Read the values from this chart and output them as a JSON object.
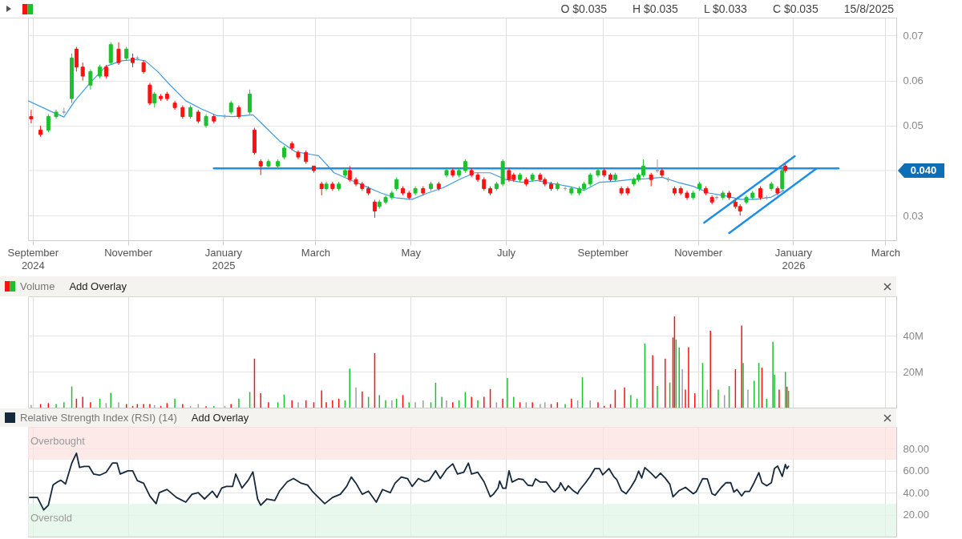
{
  "chart_data": [
    {
      "type": "candlestick",
      "annotations": [
        "O $0.035",
        "H $0.035",
        "L $0.033",
        "C $0.035",
        "15/8/2025"
      ],
      "ref_lines": [
        {
          "axis": "y",
          "value": 0.04,
          "label": "0.040",
          "color": "#e4e4e4"
        }
      ],
      "x": [
        "2024-08-31",
        "2024-09-06",
        "2024-09-11",
        "2024-09-16",
        "2024-09-21",
        "2024-09-26",
        "2024-09-29",
        "2024-10-03",
        "2024-10-08",
        "2024-10-14",
        "2024-10-18",
        "2024-10-21",
        "2024-10-26",
        "2024-10-31",
        "2024-11-04",
        "2024-11-07",
        "2024-11-11",
        "2024-11-15",
        "2024-11-18",
        "2024-11-22",
        "2024-11-26",
        "2024-12-01",
        "2024-12-06",
        "2024-12-11",
        "2024-12-16",
        "2024-12-21",
        "2024-12-26",
        "2025-01-02",
        "2025-01-06",
        "2025-01-11",
        "2025-01-18",
        "2025-01-21",
        "2025-01-25",
        "2025-01-30",
        "2025-02-05",
        "2025-02-09",
        "2025-02-14",
        "2025-02-18",
        "2025-02-23",
        "2025-02-28",
        "2025-03-05",
        "2025-03-08",
        "2025-03-12",
        "2025-03-16",
        "2025-03-20",
        "2025-03-23",
        "2025-03-27",
        "2025-03-31",
        "2025-04-04",
        "2025-04-08",
        "2025-04-11",
        "2025-04-15",
        "2025-04-19",
        "2025-04-22",
        "2025-04-26",
        "2025-04-30",
        "2025-05-04",
        "2025-05-09",
        "2025-05-14",
        "2025-05-19",
        "2025-05-24",
        "2025-05-28",
        "2025-06-01",
        "2025-06-05",
        "2025-06-09",
        "2025-06-13",
        "2025-06-17",
        "2025-06-21",
        "2025-06-25",
        "2025-06-29",
        "2025-07-03",
        "2025-07-06",
        "2025-07-10",
        "2025-07-14",
        "2025-07-18",
        "2025-07-23",
        "2025-07-26",
        "2025-07-30",
        "2025-08-03",
        "2025-08-08",
        "2025-08-12",
        "2025-08-17",
        "2025-08-20",
        "2025-08-24",
        "2025-08-29",
        "2025-09-02",
        "2025-09-06",
        "2025-09-09",
        "2025-09-13",
        "2025-09-17",
        "2025-09-21",
        "2025-09-24",
        "2025-09-27",
        "2025-10-02",
        "2025-10-06",
        "2025-10-09",
        "2025-10-13",
        "2025-10-17",
        "2025-10-21",
        "2025-10-25",
        "2025-10-29",
        "2025-11-02",
        "2025-11-06",
        "2025-11-10",
        "2025-11-13",
        "2025-11-17",
        "2025-11-21",
        "2025-11-25",
        "2025-11-28",
        "2025-12-02",
        "2025-12-06",
        "2025-12-11",
        "2025-12-15",
        "2025-12-18",
        "2025-12-22",
        "2025-12-25",
        "2025-12-27"
      ],
      "ohlc": [
        [
          0.052,
          0.0535,
          0.0505,
          0.0515
        ],
        [
          0.049,
          0.05,
          0.0475,
          0.048
        ],
        [
          0.049,
          0.0525,
          0.0485,
          0.052
        ],
        [
          0.052,
          0.0535,
          0.0515,
          0.053
        ],
        [
          0.053,
          0.054,
          0.0525,
          0.053
        ],
        [
          0.056,
          0.066,
          0.055,
          0.065
        ],
        [
          0.067,
          0.0675,
          0.062,
          0.063
        ],
        [
          0.063,
          0.064,
          0.06,
          0.061
        ],
        [
          0.059,
          0.0625,
          0.058,
          0.062
        ],
        [
          0.061,
          0.0635,
          0.0605,
          0.063
        ],
        [
          0.063,
          0.0635,
          0.0605,
          0.061
        ],
        [
          0.064,
          0.0685,
          0.0635,
          0.068
        ],
        [
          0.067,
          0.0685,
          0.0635,
          0.064
        ],
        [
          0.065,
          0.0675,
          0.0645,
          0.067
        ],
        [
          0.065,
          0.066,
          0.063,
          0.064
        ],
        [
          0.065,
          0.0655,
          0.0645,
          0.065
        ],
        [
          0.064,
          0.0645,
          0.0615,
          0.062
        ],
        [
          0.059,
          0.0595,
          0.0545,
          0.055
        ],
        [
          0.055,
          0.0575,
          0.054,
          0.057
        ],
        [
          0.0565,
          0.057,
          0.0555,
          0.056
        ],
        [
          0.057,
          0.0575,
          0.0555,
          0.056
        ],
        [
          0.055,
          0.0555,
          0.0535,
          0.054
        ],
        [
          0.054,
          0.0545,
          0.0515,
          0.052
        ],
        [
          0.052,
          0.0545,
          0.0515,
          0.054
        ],
        [
          0.053,
          0.0535,
          0.0505,
          0.051
        ],
        [
          0.05,
          0.0525,
          0.0495,
          0.052
        ],
        [
          0.052,
          0.0525,
          0.0505,
          0.051
        ],
        [
          0.052,
          0.0525,
          0.0515,
          0.052
        ],
        [
          0.053,
          0.0555,
          0.0525,
          0.055
        ],
        [
          0.054,
          0.0545,
          0.0515,
          0.052
        ],
        [
          0.053,
          0.058,
          0.0525,
          0.057
        ],
        [
          0.049,
          0.0495,
          0.0435,
          0.044
        ],
        [
          0.042,
          0.0425,
          0.039,
          0.041
        ],
        [
          0.041,
          0.0425,
          0.0405,
          0.042
        ],
        [
          0.041,
          0.0425,
          0.0405,
          0.042
        ],
        [
          0.043,
          0.0455,
          0.0425,
          0.045
        ],
        [
          0.046,
          0.0465,
          0.0445,
          0.045
        ],
        [
          0.044,
          0.0445,
          0.0425,
          0.043
        ],
        [
          0.044,
          0.0445,
          0.0415,
          0.042
        ],
        [
          0.041,
          0.041,
          0.0395,
          0.04
        ],
        [
          0.037,
          0.0375,
          0.0345,
          0.036
        ],
        [
          0.036,
          0.0375,
          0.0355,
          0.037
        ],
        [
          0.037,
          0.0375,
          0.0355,
          0.036
        ],
        [
          0.036,
          0.0375,
          0.0355,
          0.037
        ],
        [
          0.039,
          0.0405,
          0.0385,
          0.04
        ],
        [
          0.04,
          0.041,
          0.0375,
          0.038
        ],
        [
          0.038,
          0.0385,
          0.0365,
          0.037
        ],
        [
          0.037,
          0.0375,
          0.0355,
          0.036
        ],
        [
          0.036,
          0.0365,
          0.0345,
          0.035
        ],
        [
          0.033,
          0.0335,
          0.0295,
          0.031
        ],
        [
          0.032,
          0.0335,
          0.0315,
          0.033
        ],
        [
          0.033,
          0.0345,
          0.0325,
          0.034
        ],
        [
          0.034,
          0.0355,
          0.0335,
          0.035
        ],
        [
          0.036,
          0.0385,
          0.0355,
          0.038
        ],
        [
          0.036,
          0.0365,
          0.0345,
          0.035
        ],
        [
          0.035,
          0.0355,
          0.0335,
          0.034
        ],
        [
          0.035,
          0.0365,
          0.0345,
          0.036
        ],
        [
          0.036,
          0.0365,
          0.0345,
          0.035
        ],
        [
          0.036,
          0.0375,
          0.0355,
          0.037
        ],
        [
          0.037,
          0.0375,
          0.0355,
          0.036
        ],
        [
          0.039,
          0.0405,
          0.0385,
          0.04
        ],
        [
          0.04,
          0.0405,
          0.0385,
          0.039
        ],
        [
          0.039,
          0.0405,
          0.0385,
          0.04
        ],
        [
          0.04,
          0.0425,
          0.0395,
          0.042
        ],
        [
          0.04,
          0.0405,
          0.0385,
          0.039
        ],
        [
          0.039,
          0.0395,
          0.0375,
          0.038
        ],
        [
          0.038,
          0.0385,
          0.0355,
          0.036
        ],
        [
          0.036,
          0.0365,
          0.0345,
          0.035
        ],
        [
          0.036,
          0.0375,
          0.0355,
          0.037
        ],
        [
          0.037,
          0.0425,
          0.0365,
          0.042
        ],
        [
          0.04,
          0.0405,
          0.0375,
          0.038
        ],
        [
          0.039,
          0.0395,
          0.0375,
          0.038
        ],
        [
          0.038,
          0.0395,
          0.0375,
          0.039
        ],
        [
          0.038,
          0.0385,
          0.0365,
          0.037
        ],
        [
          0.038,
          0.0395,
          0.0375,
          0.039
        ],
        [
          0.039,
          0.0395,
          0.0375,
          0.038
        ],
        [
          0.038,
          0.0385,
          0.0365,
          0.037
        ],
        [
          0.037,
          0.0375,
          0.0355,
          0.036
        ],
        [
          0.036,
          0.0375,
          0.0355,
          0.037
        ],
        [
          0.036,
          0.0365,
          0.0355,
          0.036
        ],
        [
          0.035,
          0.0365,
          0.0345,
          0.036
        ],
        [
          0.035,
          0.0365,
          0.0345,
          0.036
        ],
        [
          0.036,
          0.0375,
          0.0355,
          0.037
        ],
        [
          0.037,
          0.0395,
          0.0365,
          0.039
        ],
        [
          0.039,
          0.0405,
          0.0385,
          0.04
        ],
        [
          0.04,
          0.0405,
          0.0385,
          0.039
        ],
        [
          0.039,
          0.0395,
          0.0375,
          0.038
        ],
        [
          0.038,
          0.0395,
          0.0375,
          0.039
        ],
        [
          0.036,
          0.0365,
          0.0345,
          0.035
        ],
        [
          0.036,
          0.0365,
          0.0345,
          0.035
        ],
        [
          0.037,
          0.0385,
          0.0365,
          0.038
        ],
        [
          0.038,
          0.0395,
          0.0375,
          0.039
        ],
        [
          0.039,
          0.0425,
          0.0385,
          0.041
        ],
        [
          0.039,
          0.0395,
          0.0365,
          0.038
        ],
        [
          0.04,
          0.0425,
          0.0395,
          0.04
        ],
        [
          0.04,
          0.0405,
          0.0385,
          0.039
        ],
        [
          0.038,
          0.0385,
          0.0375,
          0.038
        ],
        [
          0.036,
          0.0365,
          0.0345,
          0.035
        ],
        [
          0.036,
          0.0365,
          0.0345,
          0.035
        ],
        [
          0.035,
          0.0355,
          0.0335,
          0.034
        ],
        [
          0.034,
          0.0355,
          0.0335,
          0.035
        ],
        [
          0.036,
          0.0375,
          0.0355,
          0.037
        ],
        [
          0.036,
          0.0365,
          0.0345,
          0.035
        ],
        [
          0.034,
          0.0345,
          0.0325,
          0.033
        ],
        [
          0.034,
          0.0345,
          0.0335,
          0.034
        ],
        [
          0.034,
          0.0355,
          0.0335,
          0.035
        ],
        [
          0.035,
          0.0355,
          0.0335,
          0.034
        ],
        [
          0.033,
          0.0335,
          0.0315,
          0.032
        ],
        [
          0.032,
          0.0325,
          0.03,
          0.031
        ],
        [
          0.033,
          0.0345,
          0.0325,
          0.034
        ],
        [
          0.034,
          0.0355,
          0.0335,
          0.035
        ],
        [
          0.036,
          0.0365,
          0.0335,
          0.034
        ],
        [
          0.034,
          0.0345,
          0.0335,
          0.034
        ],
        [
          0.036,
          0.0375,
          0.0355,
          0.037
        ],
        [
          0.036,
          0.0365,
          0.0345,
          0.035
        ],
        [
          0.036,
          0.0405,
          0.0355,
          0.04
        ],
        [
          0.041,
          0.0415,
          0.0395,
          0.04
        ]
      ],
      "colors": [
        "#ff1010",
        "#ff1010",
        "#1cc02e",
        "#1cc02e",
        "#9e9e9e",
        "#1cc02e",
        "#ff1010",
        "#ff1010",
        "#1cc02e",
        "#1cc02e",
        "#ff1010",
        "#1cc02e",
        "#ff1010",
        "#1cc02e",
        "#ff1010",
        "#9e9e9e",
        "#ff1010",
        "#ff1010",
        "#1cc02e",
        "#ff1010",
        "#ff1010",
        "#ff1010",
        "#ff1010",
        "#1cc02e",
        "#ff1010",
        "#1cc02e",
        "#ff1010",
        "#9e9e9e",
        "#1cc02e",
        "#ff1010",
        "#1cc02e",
        "#ff1010",
        "#ff1010",
        "#1cc02e",
        "#1cc02e",
        "#1cc02e",
        "#ff1010",
        "#ff1010",
        "#ff1010",
        "#ff1010",
        "#ff1010",
        "#1cc02e",
        "#ff1010",
        "#1cc02e",
        "#1cc02e",
        "#ff1010",
        "#ff1010",
        "#ff1010",
        "#ff1010",
        "#ff1010",
        "#1cc02e",
        "#1cc02e",
        "#1cc02e",
        "#1cc02e",
        "#ff1010",
        "#ff1010",
        "#1cc02e",
        "#ff1010",
        "#1cc02e",
        "#ff1010",
        "#1cc02e",
        "#ff1010",
        "#1cc02e",
        "#1cc02e",
        "#ff1010",
        "#ff1010",
        "#ff1010",
        "#ff1010",
        "#1cc02e",
        "#1cc02e",
        "#ff1010",
        "#ff1010",
        "#1cc02e",
        "#ff1010",
        "#1cc02e",
        "#ff1010",
        "#ff1010",
        "#ff1010",
        "#1cc02e",
        "#9e9e9e",
        "#1cc02e",
        "#1cc02e",
        "#1cc02e",
        "#1cc02e",
        "#1cc02e",
        "#ff1010",
        "#ff1010",
        "#1cc02e",
        "#ff1010",
        "#ff1010",
        "#1cc02e",
        "#1cc02e",
        "#1cc02e",
        "#ff1010",
        "#9e9e9e",
        "#ff1010",
        "#9e9e9e",
        "#ff1010",
        "#ff1010",
        "#ff1010",
        "#1cc02e",
        "#1cc02e",
        "#ff1010",
        "#ff1010",
        "#9e9e9e",
        "#1cc02e",
        "#ff1010",
        "#ff1010",
        "#ff1010",
        "#1cc02e",
        "#1cc02e",
        "#ff1010",
        "#9e9e9e",
        "#1cc02e",
        "#ff1010",
        "#1cc02e",
        "#ff1010"
      ],
      "series": [
        {
          "type": "line",
          "color": "#3f9be3",
          "x": [
            "2024-08-29",
            "2024-09-13",
            "2024-09-21",
            "2024-09-28",
            "2024-10-08",
            "2024-10-18",
            "2024-10-28",
            "2024-11-07",
            "2024-11-12",
            "2024-11-20",
            "2024-11-28",
            "2024-12-08",
            "2024-12-18",
            "2024-12-28",
            "2025-01-07",
            "2025-01-20",
            "2025-01-27",
            "2025-02-06",
            "2025-02-16",
            "2025-02-26",
            "2025-03-03",
            "2025-03-13",
            "2025-03-23",
            "2025-04-02",
            "2025-04-12",
            "2025-04-22",
            "2025-05-02",
            "2025-05-12",
            "2025-05-22",
            "2025-06-01",
            "2025-06-11",
            "2025-06-21",
            "2025-07-01",
            "2025-07-11",
            "2025-07-21",
            "2025-07-31",
            "2025-08-10",
            "2025-08-20",
            "2025-08-30",
            "2025-09-09",
            "2025-09-19",
            "2025-09-29",
            "2025-10-09",
            "2025-10-19",
            "2025-10-29",
            "2025-11-08",
            "2025-11-18",
            "2025-11-28",
            "2025-12-08",
            "2025-12-18",
            "2025-12-26"
          ],
          "values": [
            0.0555,
            0.0531,
            0.0519,
            0.0555,
            0.0596,
            0.0632,
            0.0644,
            0.0647,
            0.0644,
            0.062,
            0.059,
            0.0555,
            0.0537,
            0.0522,
            0.052,
            0.0524,
            0.05,
            0.0466,
            0.0442,
            0.0436,
            0.0433,
            0.0395,
            0.038,
            0.0365,
            0.035,
            0.0339,
            0.0336,
            0.035,
            0.0362,
            0.038,
            0.0395,
            0.0395,
            0.038,
            0.0374,
            0.0378,
            0.0371,
            0.0365,
            0.0356,
            0.0374,
            0.0376,
            0.038,
            0.0382,
            0.0385,
            0.0374,
            0.0365,
            0.035,
            0.0344,
            0.0336,
            0.0336,
            0.0341,
            0.0356
          ]
        },
        {
          "type": "line",
          "color": "#1e8fe6",
          "x": [
            "2024-12-26",
            "2026-01-30"
          ],
          "values": [
            0.0405,
            0.0405
          ]
        },
        {
          "type": "line",
          "color": "#1e8fe6",
          "x": [
            "2025-11-05",
            "2026-01-02"
          ],
          "values": [
            0.0284,
            0.0432
          ]
        },
        {
          "type": "line",
          "color": "#1e8fe6",
          "x": [
            "2025-11-21",
            "2026-01-16"
          ],
          "values": [
            0.0261,
            0.0405
          ]
        }
      ],
      "xlim": [
        "2024-08-29",
        "2026-03-08"
      ],
      "xticks": [
        {
          "value": "2024-09-01",
          "label": "September 2024"
        },
        {
          "value": "2024-11-01",
          "label": "November"
        },
        {
          "value": "2025-01-01",
          "label": "January 2025"
        },
        {
          "value": "2025-03-01",
          "label": "March"
        },
        {
          "value": "2025-05-01",
          "label": "May"
        },
        {
          "value": "2025-07-01",
          "label": "July"
        },
        {
          "value": "2025-09-01",
          "label": "September"
        },
        {
          "value": "2025-11-01",
          "label": "November"
        },
        {
          "value": "2026-01-01",
          "label": "January 2026"
        },
        {
          "value": "2026-03-01",
          "label": "March"
        }
      ],
      "ylim": [
        0.0245,
        0.074
      ],
      "yticks": [
        0.03,
        0.05,
        0.06,
        0.07
      ],
      "grid": true
    },
    {
      "type": "bar",
      "title": "Volume",
      "annotations": [
        "Add Overlay"
      ],
      "x": [
        "2024-08-31",
        "2024-09-06",
        "2024-09-11",
        "2024-09-16",
        "2024-09-21",
        "2024-09-26",
        "2024-09-29",
        "2024-10-03",
        "2024-10-08",
        "2024-10-14",
        "2024-10-18",
        "2024-10-21",
        "2024-10-26",
        "2024-10-31",
        "2024-11-04",
        "2024-11-07",
        "2024-11-11",
        "2024-11-15",
        "2024-11-18",
        "2024-11-22",
        "2024-11-26",
        "2024-12-01",
        "2024-12-06",
        "2024-12-11",
        "2024-12-16",
        "2024-12-21",
        "2024-12-26",
        "2025-01-02",
        "2025-01-06",
        "2025-01-11",
        "2025-01-18",
        "2025-01-21",
        "2025-01-25",
        "2025-01-30",
        "2025-02-05",
        "2025-02-09",
        "2025-02-14",
        "2025-02-18",
        "2025-02-23",
        "2025-02-28",
        "2025-03-05",
        "2025-03-08",
        "2025-03-12",
        "2025-03-16",
        "2025-03-20",
        "2025-03-23",
        "2025-03-27",
        "2025-03-31",
        "2025-04-04",
        "2025-04-08",
        "2025-04-11",
        "2025-04-15",
        "2025-04-19",
        "2025-04-22",
        "2025-04-26",
        "2025-04-30",
        "2025-05-04",
        "2025-05-09",
        "2025-05-14",
        "2025-05-17",
        "2025-05-21",
        "2025-05-24",
        "2025-05-28",
        "2025-06-01",
        "2025-06-05",
        "2025-06-09",
        "2025-06-13",
        "2025-06-17",
        "2025-06-21",
        "2025-06-25",
        "2025-06-29",
        "2025-07-02",
        "2025-07-06",
        "2025-07-10",
        "2025-07-14",
        "2025-07-18",
        "2025-07-23",
        "2025-07-26",
        "2025-07-30",
        "2025-08-03",
        "2025-08-08",
        "2025-08-12",
        "2025-08-16",
        "2025-08-19",
        "2025-08-24",
        "2025-08-29",
        "2025-09-02",
        "2025-09-06",
        "2025-09-09",
        "2025-09-15",
        "2025-09-19",
        "2025-09-23",
        "2025-09-28",
        "2025-10-03",
        "2025-10-06",
        "2025-10-11",
        "2025-10-14",
        "2025-10-16",
        "2025-10-17",
        "2025-10-18",
        "2025-10-20",
        "2025-10-22",
        "2025-10-24",
        "2025-10-26",
        "2025-10-30",
        "2025-11-04",
        "2025-11-07",
        "2025-11-09",
        "2025-11-14",
        "2025-11-18",
        "2025-11-21",
        "2025-11-25",
        "2025-11-29",
        "2025-11-30",
        "2025-12-03",
        "2025-12-07",
        "2025-12-10",
        "2025-12-12",
        "2025-12-15",
        "2025-12-19",
        "2025-12-20",
        "2025-12-23",
        "2025-12-27",
        "2025-12-28",
        "2025-12-29"
      ],
      "values": [
        1.5,
        2,
        2.5,
        2,
        3,
        11.8,
        5,
        6,
        3,
        5,
        2.5,
        8.3,
        3,
        2,
        1,
        2,
        2,
        2,
        1.5,
        1,
        2.5,
        5,
        2,
        1,
        2,
        0.8,
        1,
        1,
        2,
        5,
        8.7,
        27.3,
        8,
        3,
        3,
        7.3,
        4,
        3,
        4,
        3,
        9.6,
        3,
        4,
        5,
        4,
        21.7,
        11.3,
        9,
        6,
        30.4,
        7,
        4,
        4,
        5,
        7,
        3,
        3,
        4,
        3,
        13.9,
        6,
        4,
        3,
        4,
        8.7,
        6,
        4,
        6,
        10.4,
        3,
        5,
        16.5,
        6,
        3,
        3,
        3,
        2,
        3,
        2,
        3,
        2,
        5,
        4,
        16.9,
        4,
        3,
        1,
        2,
        10,
        11.3,
        7,
        5,
        35.7,
        29.2,
        12,
        27.3,
        14,
        39.1,
        50.8,
        37.9,
        33.4,
        21.4,
        10,
        33.7,
        8,
        24.9,
        10,
        42.8,
        10,
        7,
        12,
        21.4,
        45.7,
        24.9,
        10,
        15,
        24.9,
        22.3,
        5,
        36.7,
        18.3,
        10,
        20,
        11.7,
        9.4
      ],
      "colors": [
        "#9e9e9e",
        "#ff1010",
        "#ff1010",
        "#1cc02e",
        "#1cc02e",
        "#1cc02e",
        "#ff1010",
        "#ff1010",
        "#ff1010",
        "#1cc02e",
        "#9e9e9e",
        "#1cc02e",
        "#9e9e9e",
        "#ff1010",
        "#ff1010",
        "#ff1010",
        "#ff1010",
        "#ff1010",
        "#9e9e9e",
        "#ff1010",
        "#ff1010",
        "#1cc02e",
        "#ff1010",
        "#9e9e9e",
        "#9e9e9e",
        "#ff1010",
        "#1cc02e",
        "#9e9e9e",
        "#ff1010",
        "#1cc02e",
        "#1cc02e",
        "#ff1010",
        "#ff1010",
        "#ff1010",
        "#1cc02e",
        "#1cc02e",
        "#ff1010",
        "#9e9e9e",
        "#ff1010",
        "#ff1010",
        "#ff1010",
        "#ff1010",
        "#ff1010",
        "#ff1010",
        "#1cc02e",
        "#1cc02e",
        "#9e9e9e",
        "#ff1010",
        "#1cc02e",
        "#ff1010",
        "#1cc02e",
        "#1cc02e",
        "#9e9e9e",
        "#1cc02e",
        "#ff1010",
        "#1cc02e",
        "#9e9e9e",
        "#9e9e9e",
        "#1cc02e",
        "#1cc02e",
        "#1cc02e",
        "#9e9e9e",
        "#ff1010",
        "#1cc02e",
        "#1cc02e",
        "#ff1010",
        "#1cc02e",
        "#ff1010",
        "#ff1010",
        "#9e9e9e",
        "#ff1010",
        "#1cc02e",
        "#1cc02e",
        "#ff1010",
        "#9e9e9e",
        "#ff1010",
        "#9e9e9e",
        "#9e9e9e",
        "#ff1010",
        "#ff1010",
        "#1cc02e",
        "#ff1010",
        "#9e9e9e",
        "#1cc02e",
        "#9e9e9e",
        "#ff1010",
        "#ff1010",
        "#ff1010",
        "#ff1010",
        "#ff1010",
        "#1cc02e",
        "#1cc02e",
        "#1cc02e",
        "#ff1010",
        "#1cc02e",
        "#ff1010",
        "#1cc02e",
        "#ff1010",
        "#ff1010",
        "#1cc02e",
        "#1cc02e",
        "#9e9e9e",
        "#ff1010",
        "#ff1010",
        "#ff1010",
        "#1cc02e",
        "#9e9e9e",
        "#ff1010",
        "#1cc02e",
        "#9e9e9e",
        "#1cc02e",
        "#ff1010",
        "#ff1010",
        "#1cc02e",
        "#9e9e9e",
        "#1cc02e",
        "#1cc02e",
        "#ff1010",
        "#1cc02e",
        "#1cc02e",
        "#1cc02e",
        "#ff1010",
        "#1cc02e",
        "#ff1010",
        "#1cc02e"
      ],
      "xlim": [
        "2024-08-29",
        "2026-03-08"
      ],
      "xticks": [
        {
          "value": "2024-09-01",
          "label": null
        },
        {
          "value": "2024-11-01",
          "label": null
        },
        {
          "value": "2025-01-01",
          "label": null
        },
        {
          "value": "2025-03-01",
          "label": null
        },
        {
          "value": "2025-05-01",
          "label": null
        },
        {
          "value": "2025-07-01",
          "label": null
        },
        {
          "value": "2025-09-01",
          "label": null
        },
        {
          "value": "2025-11-01",
          "label": null
        },
        {
          "value": "2026-01-01",
          "label": null
        },
        {
          "value": "2026-03-01",
          "label": null
        }
      ],
      "ylim": [
        0,
        62
      ],
      "yticks": [
        {
          "value": 20,
          "label": "20M"
        },
        {
          "value": 40,
          "label": "40M"
        }
      ],
      "grid": true,
      "tick_labels": "y"
    },
    {
      "type": "line",
      "title": "Relative Strength Index (RSI) (14)",
      "annotations": [
        "Add Overlay"
      ],
      "color": "#15283c",
      "x": [
        "2024-08-30",
        "2024-09-04",
        "2024-09-08",
        "2024-09-11",
        "2024-09-14",
        "2024-09-17",
        "2024-09-19",
        "2024-09-22",
        "2024-09-26",
        "2024-09-29",
        "2024-10-01",
        "2024-10-04",
        "2024-10-07",
        "2024-10-10",
        "2024-10-14",
        "2024-10-18",
        "2024-10-22",
        "2024-10-25",
        "2024-10-27",
        "2024-11-01",
        "2024-11-04",
        "2024-11-07",
        "2024-11-11",
        "2024-11-15",
        "2024-11-19",
        "2024-11-21",
        "2024-11-26",
        "2024-12-02",
        "2024-12-08",
        "2024-12-12",
        "2024-12-16",
        "2024-12-20",
        "2024-12-25",
        "2024-12-28",
        "2024-12-31",
        "2025-01-03",
        "2025-01-07",
        "2025-01-09",
        "2025-01-13",
        "2025-01-17",
        "2025-01-20",
        "2025-01-23",
        "2025-01-25",
        "2025-01-29",
        "2025-02-03",
        "2025-02-06",
        "2025-02-11",
        "2025-02-15",
        "2025-02-20",
        "2025-02-24",
        "2025-02-27",
        "2025-03-03",
        "2025-03-07",
        "2025-03-12",
        "2025-03-17",
        "2025-03-21",
        "2025-03-24",
        "2025-03-27",
        "2025-03-31",
        "2025-04-04",
        "2025-04-09",
        "2025-04-13",
        "2025-04-18",
        "2025-04-21",
        "2025-04-25",
        "2025-04-29",
        "2025-05-02",
        "2025-05-06",
        "2025-05-10",
        "2025-05-13",
        "2025-05-17",
        "2025-05-20",
        "2025-05-24",
        "2025-05-28",
        "2025-05-31",
        "2025-06-04",
        "2025-06-07",
        "2025-06-09",
        "2025-06-13",
        "2025-06-17",
        "2025-06-21",
        "2025-06-23",
        "2025-06-26",
        "2025-06-27",
        "2025-06-29",
        "2025-07-01",
        "2025-07-03",
        "2025-07-05",
        "2025-07-09",
        "2025-07-12",
        "2025-07-15",
        "2025-07-18",
        "2025-07-20",
        "2025-07-23",
        "2025-07-27",
        "2025-07-30",
        "2025-08-01",
        "2025-08-04",
        "2025-08-05",
        "2025-08-08",
        "2025-08-10",
        "2025-08-13",
        "2025-08-16",
        "2025-08-17",
        "2025-08-21",
        "2025-08-24",
        "2025-08-27",
        "2025-08-30",
        "2025-09-01",
        "2025-09-03",
        "2025-09-05",
        "2025-09-08",
        "2025-09-10",
        "2025-09-13",
        "2025-09-16",
        "2025-09-19",
        "2025-09-22",
        "2025-09-24",
        "2025-09-26",
        "2025-09-28",
        "2025-10-02",
        "2025-10-05",
        "2025-10-08",
        "2025-10-11",
        "2025-10-14",
        "2025-10-16",
        "2025-10-20",
        "2025-10-24",
        "2025-10-29",
        "2025-10-31",
        "2025-11-04",
        "2025-11-07",
        "2025-11-10",
        "2025-11-12",
        "2025-11-16",
        "2025-11-19",
        "2025-11-22",
        "2025-11-24",
        "2025-11-26",
        "2025-11-29",
        "2025-12-01",
        "2025-12-04",
        "2025-12-07",
        "2025-12-10",
        "2025-12-12",
        "2025-12-15",
        "2025-12-18",
        "2025-12-20",
        "2025-12-22",
        "2025-12-25",
        "2025-12-27",
        "2025-12-28",
        "2025-12-29"
      ],
      "values": [
        35.7,
        35.7,
        24.3,
        28.6,
        47,
        50,
        51.4,
        48,
        67,
        76,
        63,
        64,
        64,
        57,
        56,
        58.6,
        67,
        67,
        57,
        60,
        60,
        51,
        48.6,
        37,
        30,
        40,
        43,
        35.7,
        31.4,
        38.6,
        40,
        34.3,
        41.4,
        35.7,
        44.3,
        45.7,
        45.7,
        57,
        44.3,
        51.4,
        59,
        34.3,
        28.6,
        34.3,
        32.9,
        41.4,
        50,
        52.9,
        48.6,
        47,
        41.4,
        35.7,
        30,
        35.7,
        38.6,
        45.7,
        54.3,
        48.6,
        38.6,
        41.4,
        31.4,
        42.9,
        40,
        48.6,
        54.3,
        52.9,
        45.7,
        52.9,
        50,
        51.4,
        60,
        52.9,
        61.4,
        66.3,
        57,
        58.6,
        67,
        57,
        58.6,
        50,
        36.3,
        38.6,
        44.3,
        50.6,
        44,
        44,
        60,
        49.7,
        52.6,
        52,
        46.9,
        46.3,
        52.6,
        49.7,
        49.7,
        43.4,
        40.6,
        44.9,
        49.1,
        42,
        46.3,
        42,
        39.1,
        42,
        49.1,
        54.9,
        62,
        62,
        56.3,
        59.1,
        62,
        54.9,
        52,
        42,
        39.1,
        44.9,
        52,
        59.7,
        53.4,
        62.9,
        57.7,
        53.4,
        57.7,
        53.4,
        47.7,
        36.3,
        42,
        44.9,
        39.1,
        41.1,
        52.9,
        52.6,
        39.1,
        37.7,
        44.9,
        49.1,
        49.1,
        40.6,
        42.9,
        37.1,
        41.1,
        41.1,
        49.1,
        58.3,
        49.1,
        46.3,
        49.1,
        62,
        64.3,
        54.9,
        65.7,
        62,
        64
      ],
      "bands": [
        {
          "axis": "y",
          "from": 70,
          "to": 100,
          "label": "Overbought",
          "color": "#fde1e1"
        },
        {
          "axis": "y",
          "from": 0,
          "to": 30,
          "label": "Oversold",
          "color": "#e2f5e6"
        }
      ],
      "xlim": [
        "2024-08-29",
        "2026-03-08"
      ],
      "xticks": [
        {
          "value": "2024-09-01",
          "label": null
        },
        {
          "value": "2024-11-01",
          "label": null
        },
        {
          "value": "2025-01-01",
          "label": null
        },
        {
          "value": "2025-03-01",
          "label": null
        },
        {
          "value": "2025-05-01",
          "label": null
        },
        {
          "value": "2025-07-01",
          "label": null
        },
        {
          "value": "2025-09-01",
          "label": null
        },
        {
          "value": "2025-11-01",
          "label": null
        },
        {
          "value": "2026-01-01",
          "label": null
        },
        {
          "value": "2026-03-01",
          "label": null
        }
      ],
      "ylim": [
        0,
        100
      ],
      "yticks": [
        {
          "value": 20,
          "label": "20.00"
        },
        {
          "value": 40,
          "label": "40.00"
        },
        {
          "value": 60,
          "label": "60.00"
        },
        {
          "value": 80,
          "label": "80.00"
        }
      ],
      "grid": true,
      "tick_labels": "y"
    }
  ]
}
